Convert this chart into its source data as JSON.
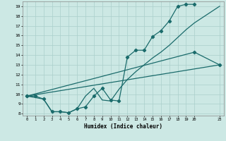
{
  "xlabel": "Humidex (Indice chaleur)",
  "bg_color": "#cce8e4",
  "grid_color": "#aacfcb",
  "line_color": "#1a6b6b",
  "xlim": [
    -0.5,
    23.5
  ],
  "ylim": [
    7.8,
    19.5
  ],
  "xticks": [
    0,
    1,
    2,
    3,
    4,
    5,
    6,
    7,
    8,
    9,
    10,
    11,
    12,
    13,
    14,
    15,
    16,
    17,
    18,
    19,
    20,
    23
  ],
  "yticks": [
    8,
    9,
    10,
    11,
    12,
    13,
    14,
    15,
    16,
    17,
    18,
    19
  ],
  "line1_x": [
    0,
    1,
    2,
    3,
    4,
    5,
    6,
    7,
    8,
    9,
    10,
    11,
    12,
    13,
    14,
    15,
    16,
    17,
    18,
    19,
    20
  ],
  "line1_y": [
    9.8,
    9.8,
    9.5,
    8.2,
    8.2,
    8.1,
    8.5,
    8.7,
    9.8,
    10.6,
    9.4,
    9.3,
    13.8,
    14.5,
    14.5,
    15.9,
    16.5,
    17.5,
    19.0,
    19.2,
    19.2
  ],
  "line2_x": [
    0,
    23
  ],
  "line2_y": [
    9.8,
    13.0
  ],
  "line3_x": [
    0,
    2,
    3,
    4,
    5,
    6,
    7,
    8,
    9,
    10,
    11,
    12,
    13,
    14,
    15,
    16,
    17,
    18,
    19,
    20,
    23
  ],
  "line3_y": [
    9.8,
    9.5,
    8.2,
    8.2,
    8.1,
    8.5,
    9.8,
    10.6,
    9.4,
    9.3,
    10.5,
    11.5,
    12.3,
    13.0,
    13.7,
    14.3,
    15.0,
    15.8,
    16.6,
    17.3,
    19.0
  ],
  "line4_x": [
    0,
    20,
    23
  ],
  "line4_y": [
    9.8,
    14.3,
    13.0
  ]
}
